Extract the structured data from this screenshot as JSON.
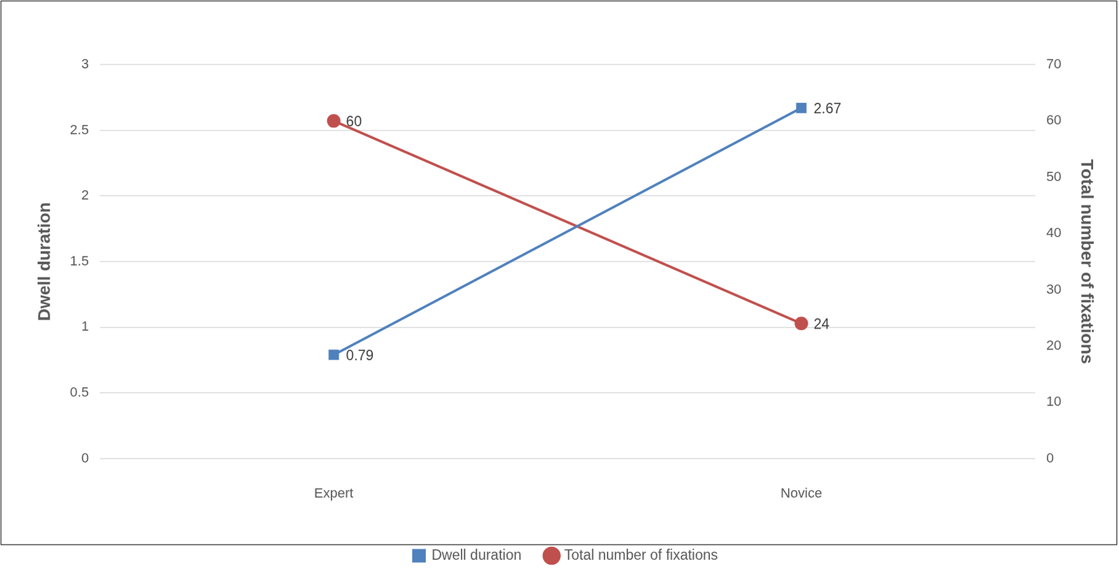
{
  "chart_data": {
    "type": "line",
    "categories": [
      "Expert",
      "Novice"
    ],
    "series": [
      {
        "name": "Dwell duration",
        "color": "#4f81bd",
        "marker": "square",
        "values": [
          0.79,
          2.67
        ]
      },
      {
        "name": "Total number of fixations",
        "color": "#c0504d",
        "marker": "circle",
        "axis": "y2",
        "values": [
          60,
          24
        ]
      }
    ],
    "y_label": "Dwell duration",
    "y2_label": "Total number of fixations",
    "ylim": [
      0,
      3
    ],
    "yticks": [
      0,
      0.5,
      1,
      1.5,
      2,
      2.5,
      3
    ],
    "y2lim": [
      0,
      70
    ],
    "y2ticks": [
      0,
      10,
      20,
      30,
      40,
      50,
      60,
      70
    ],
    "grid": true,
    "legend": "bottom",
    "data_labels": true
  }
}
